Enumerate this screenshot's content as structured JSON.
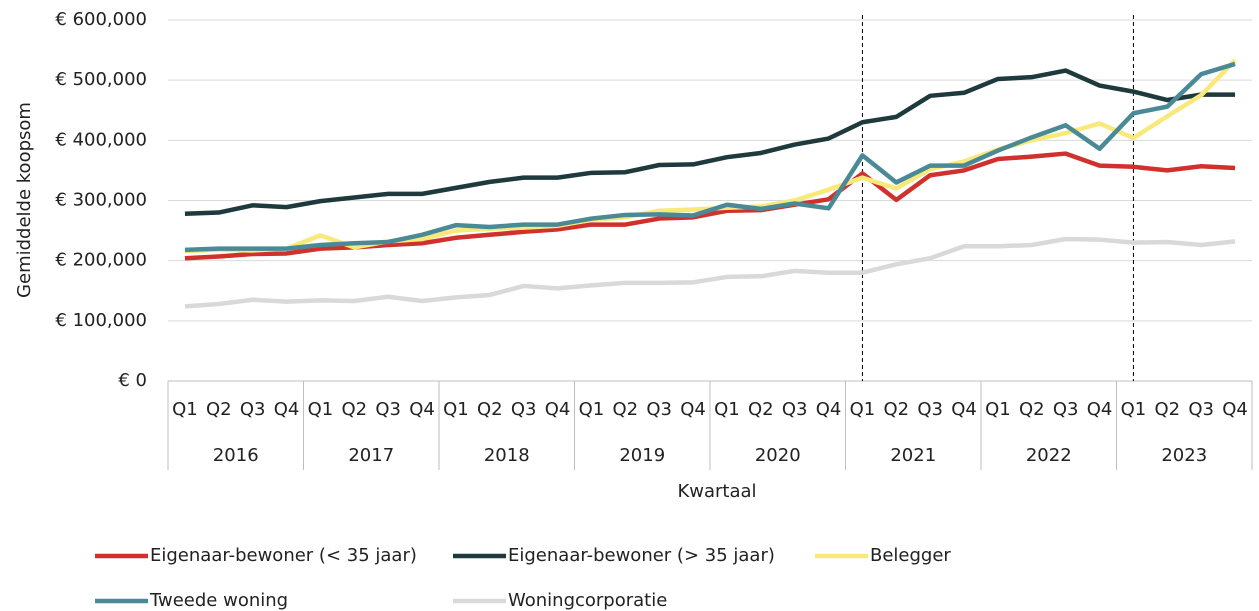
{
  "chart_data": {
    "type": "line",
    "ylabel": "Gemiddelde koopsom",
    "xlabel": "Kwartaal",
    "categories": [
      "Q1",
      "Q2",
      "Q3",
      "Q4",
      "Q1",
      "Q2",
      "Q3",
      "Q4",
      "Q1",
      "Q2",
      "Q3",
      "Q4",
      "Q1",
      "Q2",
      "Q3",
      "Q4",
      "Q1",
      "Q2",
      "Q3",
      "Q4",
      "Q1",
      "Q2",
      "Q3",
      "Q4",
      "Q1",
      "Q2",
      "Q3",
      "Q4",
      "Q1",
      "Q2",
      "Q3",
      "Q4"
    ],
    "years": [
      "2016",
      "2017",
      "2018",
      "2019",
      "2020",
      "2021",
      "2022",
      "2023"
    ],
    "vline_categories": [
      20,
      28
    ],
    "ylim": [
      0,
      600000
    ],
    "yticks": [
      {
        "value": 0,
        "label": "€ 0"
      },
      {
        "value": 100000,
        "label": "€ 100,000"
      },
      {
        "value": 200000,
        "label": "€ 200,000"
      },
      {
        "value": 300000,
        "label": "€ 300,000"
      },
      {
        "value": 400000,
        "label": "€ 400,000"
      },
      {
        "value": 500000,
        "label": "€ 500,000"
      },
      {
        "value": 600000,
        "label": "€ 600,000"
      }
    ],
    "grid": true,
    "legend": "bottom",
    "series": [
      {
        "name": "Eigenaar-bewoner (< 35 jaar)",
        "color": "#d0312d",
        "values": [
          204000,
          207000,
          211000,
          212000,
          220000,
          222000,
          226000,
          229000,
          238000,
          243000,
          248000,
          252000,
          260000,
          260000,
          270000,
          272000,
          283000,
          284000,
          293000,
          302000,
          345000,
          301000,
          342000,
          350000,
          369000,
          373000,
          378000,
          358000,
          356000,
          350000,
          357000,
          354000
        ]
      },
      {
        "name": "Eigenaar-bewoner (> 35 jaar)",
        "color": "#1f3a3d",
        "values": [
          278000,
          280000,
          292000,
          289000,
          299000,
          305000,
          311000,
          311000,
          321000,
          331000,
          338000,
          338000,
          346000,
          347000,
          359000,
          360000,
          372000,
          379000,
          393000,
          403000,
          430000,
          439000,
          474000,
          479000,
          502000,
          505000,
          516000,
          491000,
          481000,
          467000,
          476000,
          476000
        ]
      },
      {
        "name": "Belegger",
        "color": "#f9e97a",
        "values": [
          216000,
          218000,
          217000,
          220000,
          242000,
          222000,
          232000,
          236000,
          250000,
          253000,
          255000,
          258000,
          268000,
          272000,
          283000,
          285000,
          288000,
          290000,
          300000,
          318000,
          338000,
          320000,
          352000,
          365000,
          385000,
          400000,
          412000,
          428000,
          404000,
          440000,
          475000,
          533000
        ]
      },
      {
        "name": "Tweede woning",
        "color": "#4a8a96",
        "values": [
          218000,
          220000,
          220000,
          220000,
          226000,
          229000,
          231000,
          243000,
          259000,
          256000,
          260000,
          260000,
          270000,
          276000,
          277000,
          275000,
          293000,
          286000,
          295000,
          287000,
          375000,
          330000,
          358000,
          358000,
          383000,
          405000,
          425000,
          386000,
          445000,
          456000,
          510000,
          527000
        ]
      },
      {
        "name": "Woningcorporatie",
        "color": "#d9d9d9",
        "values": [
          124000,
          128000,
          135000,
          132000,
          134000,
          133000,
          140000,
          133000,
          139000,
          143000,
          158000,
          154000,
          159000,
          163000,
          163000,
          164000,
          173000,
          174000,
          183000,
          180000,
          180000,
          194000,
          204000,
          224000,
          224000,
          226000,
          236000,
          235000,
          230000,
          231000,
          226000,
          232000
        ]
      }
    ]
  }
}
